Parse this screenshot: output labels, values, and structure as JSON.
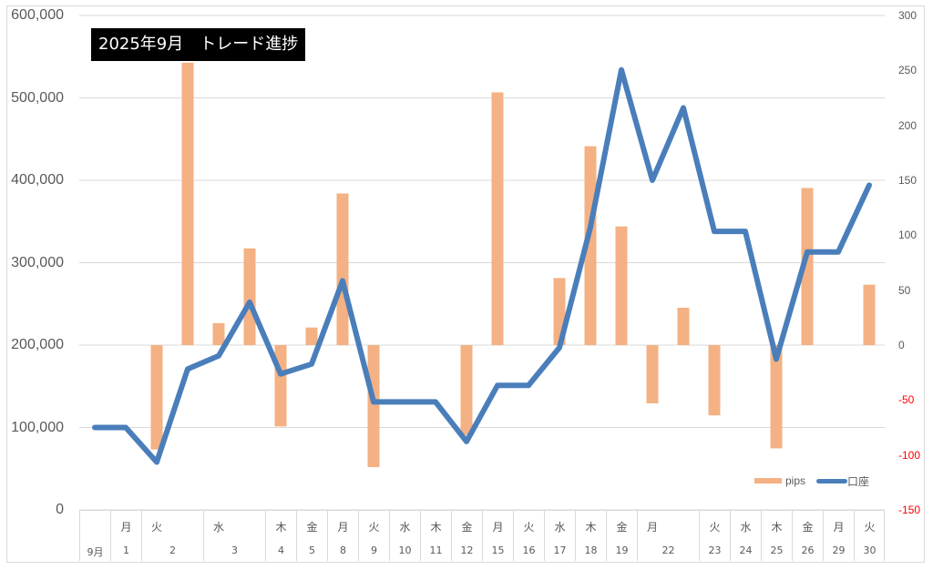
{
  "chart_data": {
    "type": "bar+line",
    "title": "2025年9月　トレード進捗",
    "categories": [
      "9月",
      "1",
      "2",
      "2",
      "3",
      "3",
      "4",
      "5",
      "8",
      "9",
      "10",
      "11",
      "12",
      "15",
      "16",
      "17",
      "18",
      "19",
      "22",
      "22",
      "23",
      "24",
      "25",
      "26",
      "29",
      "30"
    ],
    "weekdays": [
      "",
      "月",
      "火",
      "火",
      "水",
      "水",
      "木",
      "金",
      "月",
      "火",
      "水",
      "木",
      "金",
      "月",
      "火",
      "水",
      "木",
      "金",
      "月",
      "月",
      "火",
      "水",
      "木",
      "金",
      "月",
      "火"
    ],
    "series": [
      {
        "name": "pips",
        "type": "bar",
        "axis": "right",
        "color": "#F4B183",
        "values": [
          null,
          null,
          -95,
          257,
          20,
          88,
          -74,
          16,
          138,
          -111,
          null,
          null,
          -82,
          230,
          null,
          61,
          181,
          108,
          -53,
          34,
          -64,
          null,
          -94,
          143,
          null,
          55
        ]
      },
      {
        "name": "口座",
        "type": "line",
        "axis": "left",
        "color": "#4A7EBB",
        "values": [
          100000,
          100000,
          58000,
          171000,
          187000,
          252000,
          165000,
          177000,
          278000,
          131000,
          131000,
          131000,
          83000,
          151000,
          151000,
          197000,
          343000,
          534000,
          400000,
          488000,
          338000,
          338000,
          183000,
          313000,
          313000,
          394000
        ]
      }
    ],
    "left_axis": {
      "ylim": [
        0,
        600000
      ],
      "ticks": [
        "0",
        "100,000",
        "200,000",
        "300,000",
        "400,000",
        "500,000",
        "600,000"
      ]
    },
    "right_axis": {
      "ylim": [
        -150,
        300
      ],
      "ticks": [
        "300",
        "250",
        "200",
        "150",
        "100",
        "50",
        "0",
        "-50",
        "-100",
        "-150"
      ],
      "negative_color": "#FF0000"
    },
    "grid": true,
    "legend": {
      "position": "bottom-right",
      "entries": [
        "pips",
        "口座"
      ]
    }
  },
  "axis_table": {
    "cells": [
      {
        "dow": "",
        "day": "9月",
        "span": 1
      },
      {
        "dow": "月",
        "day": "1",
        "span": 1
      },
      {
        "dow": "火",
        "day": "2",
        "span": 2
      },
      {
        "dow": "水",
        "day": "3",
        "span": 2
      },
      {
        "dow": "木",
        "day": "4",
        "span": 1
      },
      {
        "dow": "金",
        "day": "5",
        "span": 1
      },
      {
        "dow": "月",
        "day": "8",
        "span": 1
      },
      {
        "dow": "火",
        "day": "9",
        "span": 1
      },
      {
        "dow": "水",
        "day": "10",
        "span": 1
      },
      {
        "dow": "木",
        "day": "11",
        "span": 1
      },
      {
        "dow": "金",
        "day": "12",
        "span": 1
      },
      {
        "dow": "月",
        "day": "15",
        "span": 1
      },
      {
        "dow": "火",
        "day": "16",
        "span": 1
      },
      {
        "dow": "水",
        "day": "17",
        "span": 1
      },
      {
        "dow": "木",
        "day": "18",
        "span": 1
      },
      {
        "dow": "金",
        "day": "19",
        "span": 1
      },
      {
        "dow": "月",
        "day": "22",
        "span": 2
      },
      {
        "dow": "火",
        "day": "23",
        "span": 1
      },
      {
        "dow": "水",
        "day": "24",
        "span": 1
      },
      {
        "dow": "木",
        "day": "25",
        "span": 1
      },
      {
        "dow": "金",
        "day": "26",
        "span": 1
      },
      {
        "dow": "月",
        "day": "29",
        "span": 1
      },
      {
        "dow": "火",
        "day": "30",
        "span": 1
      }
    ]
  },
  "legend": {
    "bar_label": "pips",
    "line_label": "口座"
  }
}
